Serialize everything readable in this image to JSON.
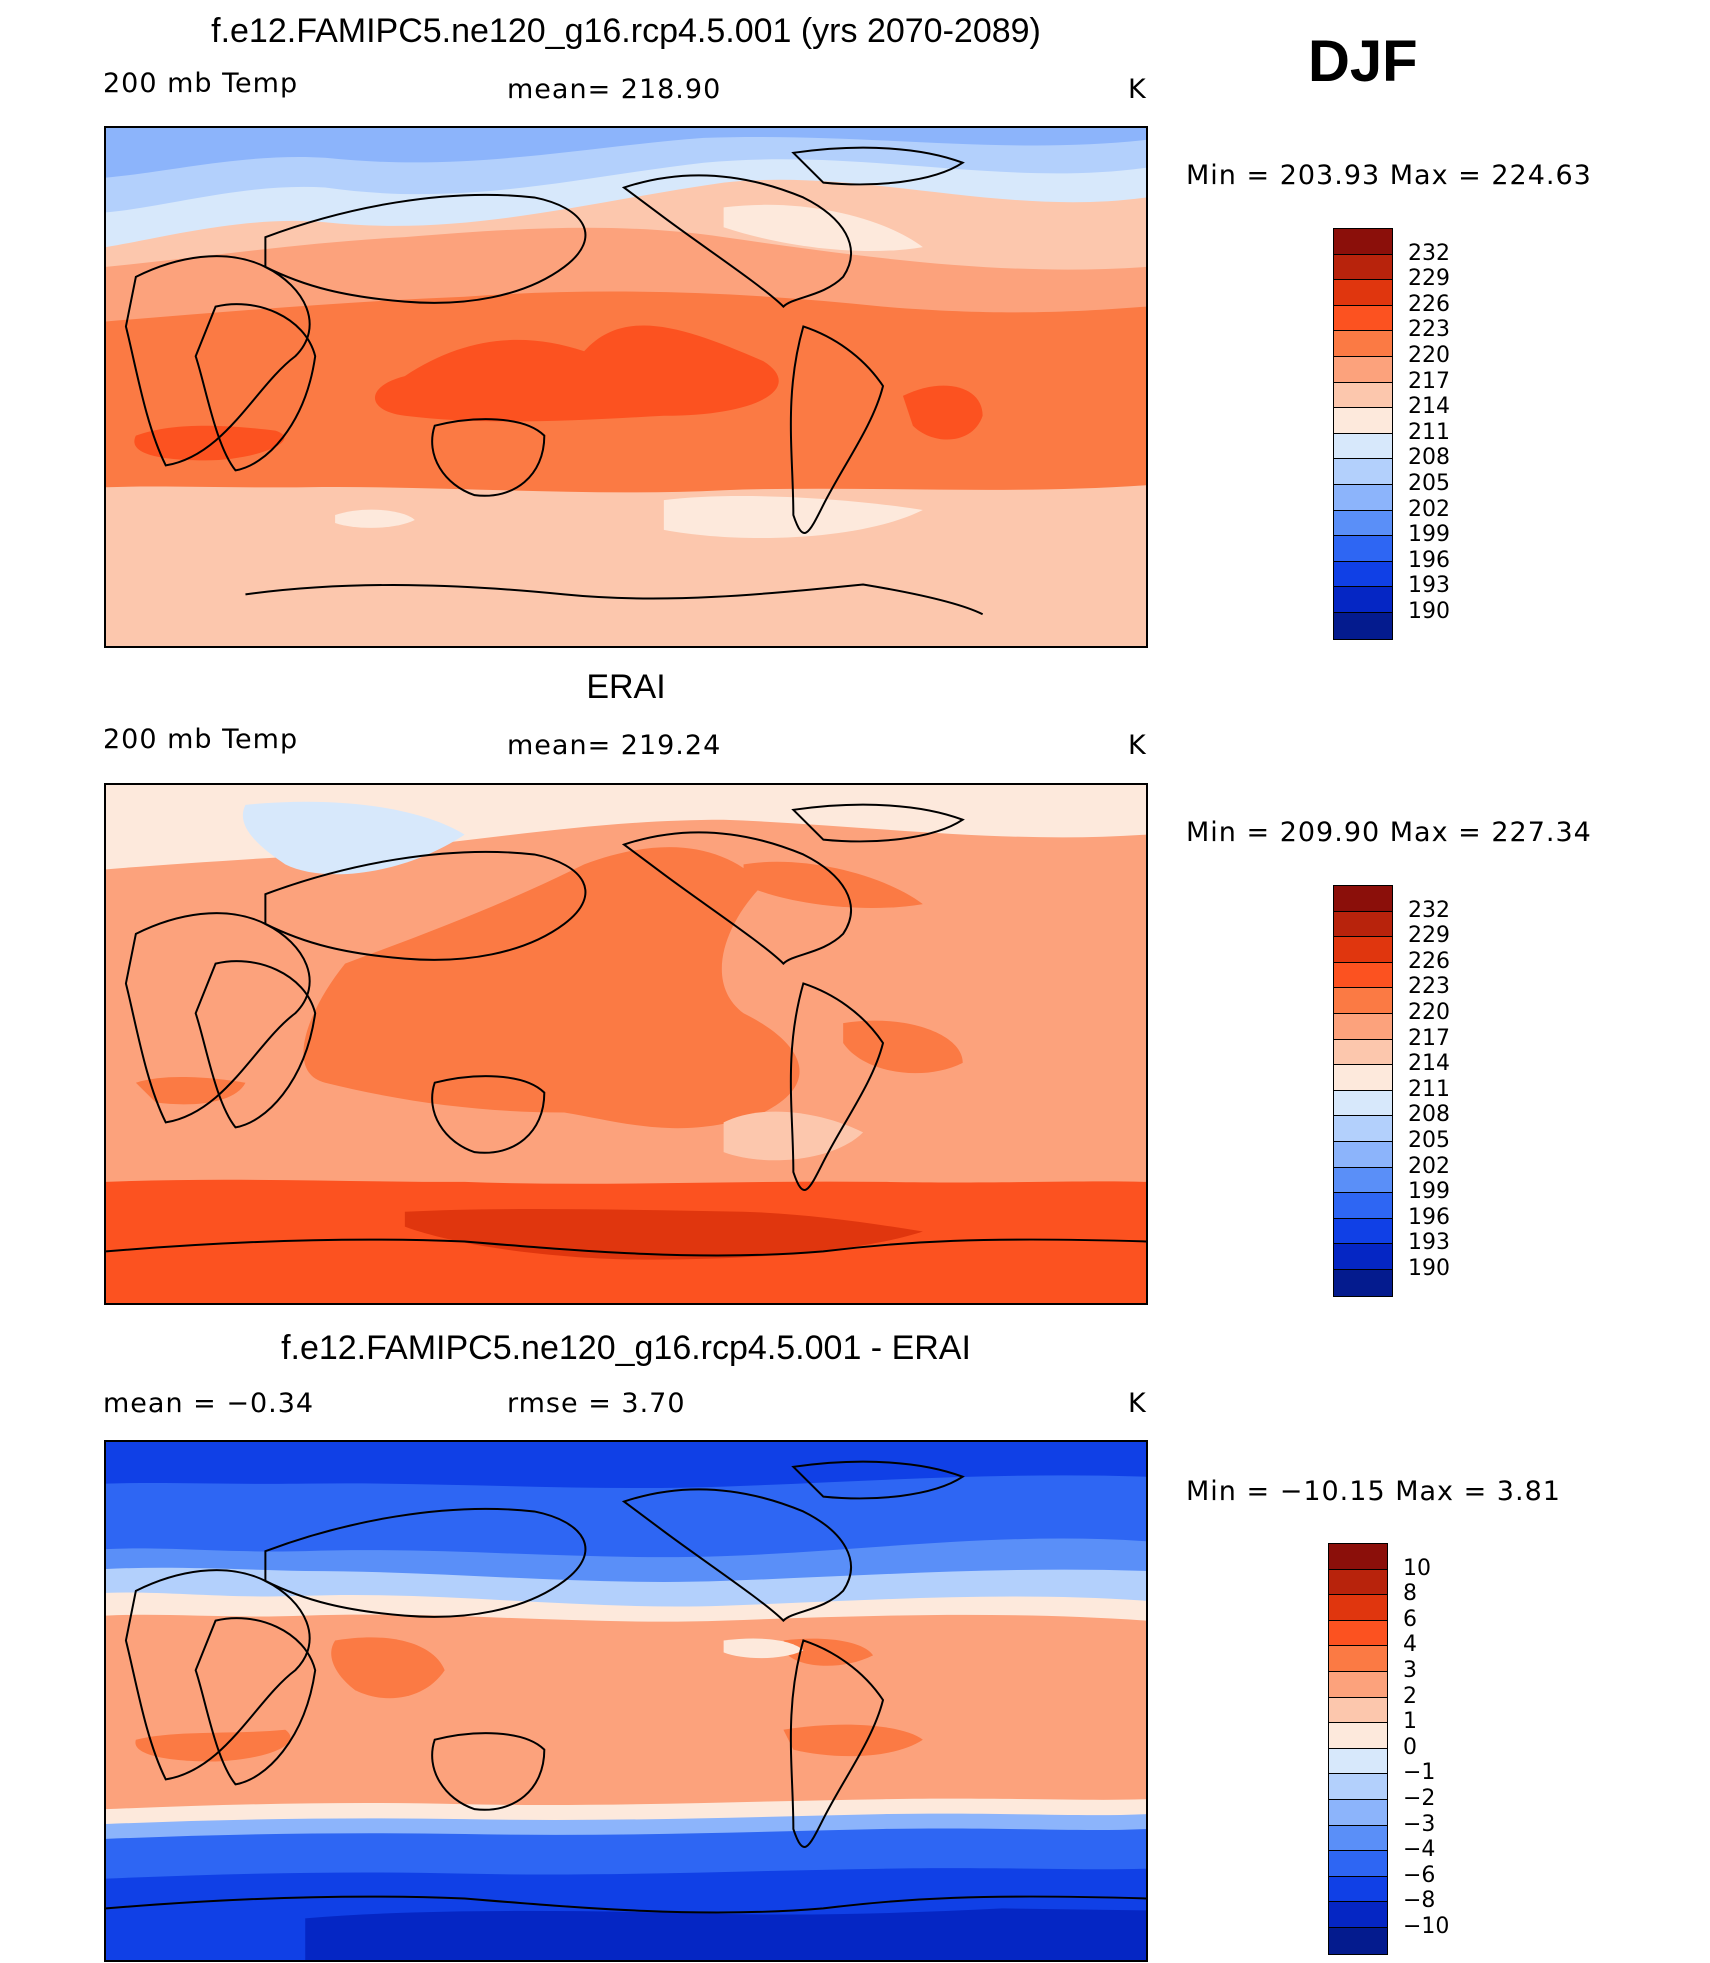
{
  "season": "DJF",
  "panels": [
    {
      "title": "f.e12.FAMIPC5.ne120_g16.rcp4.5.001 (yrs 2070-2089)",
      "left_label": "200 mb Temp",
      "center_label": "mean= 218.90",
      "units": "K",
      "minmax": "Min  =  203.93  Max  =  224.63",
      "colorbar": {
        "labels": [
          "232",
          "229",
          "226",
          "223",
          "220",
          "217",
          "214",
          "211",
          "208",
          "205",
          "202",
          "199",
          "196",
          "193",
          "190"
        ],
        "colors": [
          "#8b0f0a",
          "#b8230c",
          "#e0360e",
          "#fc5220",
          "#fb7a44",
          "#fca27c",
          "#fcc7ad",
          "#fde9dc",
          "#d7e8fb",
          "#b3d0fc",
          "#8cb4fb",
          "#5a8ff8",
          "#2e66f3",
          "#1040e6",
          "#0526c4",
          "#041b8e"
        ]
      }
    },
    {
      "title": "ERAI",
      "left_label": "200 mb Temp",
      "center_label": "mean= 219.24",
      "units": "K",
      "minmax": "Min  =  209.90  Max  =  227.34",
      "colorbar": {
        "labels": [
          "232",
          "229",
          "226",
          "223",
          "220",
          "217",
          "214",
          "211",
          "208",
          "205",
          "202",
          "199",
          "196",
          "193",
          "190"
        ],
        "colors": [
          "#8b0f0a",
          "#b8230c",
          "#e0360e",
          "#fc5220",
          "#fb7a44",
          "#fca27c",
          "#fcc7ad",
          "#fde9dc",
          "#d7e8fb",
          "#b3d0fc",
          "#8cb4fb",
          "#5a8ff8",
          "#2e66f3",
          "#1040e6",
          "#0526c4",
          "#041b8e"
        ]
      }
    },
    {
      "title": "f.e12.FAMIPC5.ne120_g16.rcp4.5.001 - ERAI",
      "left_label": "mean =    −0.34",
      "center_label": "rmse =     3.70",
      "units": "K",
      "minmax": "Min  =  −10.15  Max  =      3.81",
      "colorbar": {
        "labels": [
          "10",
          "8",
          "6",
          "4",
          "3",
          "2",
          "1",
          "0",
          "−1",
          "−2",
          "−3",
          "−4",
          "−6",
          "−8",
          "−10"
        ],
        "colors": [
          "#8b0f0a",
          "#b8230c",
          "#e0360e",
          "#fc5220",
          "#fb7a44",
          "#fca27c",
          "#fcc7ad",
          "#fde9dc",
          "#d7e8fb",
          "#b3d0fc",
          "#8cb4fb",
          "#5a8ff8",
          "#2e66f3",
          "#1040e6",
          "#0526c4",
          "#041b8e"
        ]
      }
    }
  ]
}
